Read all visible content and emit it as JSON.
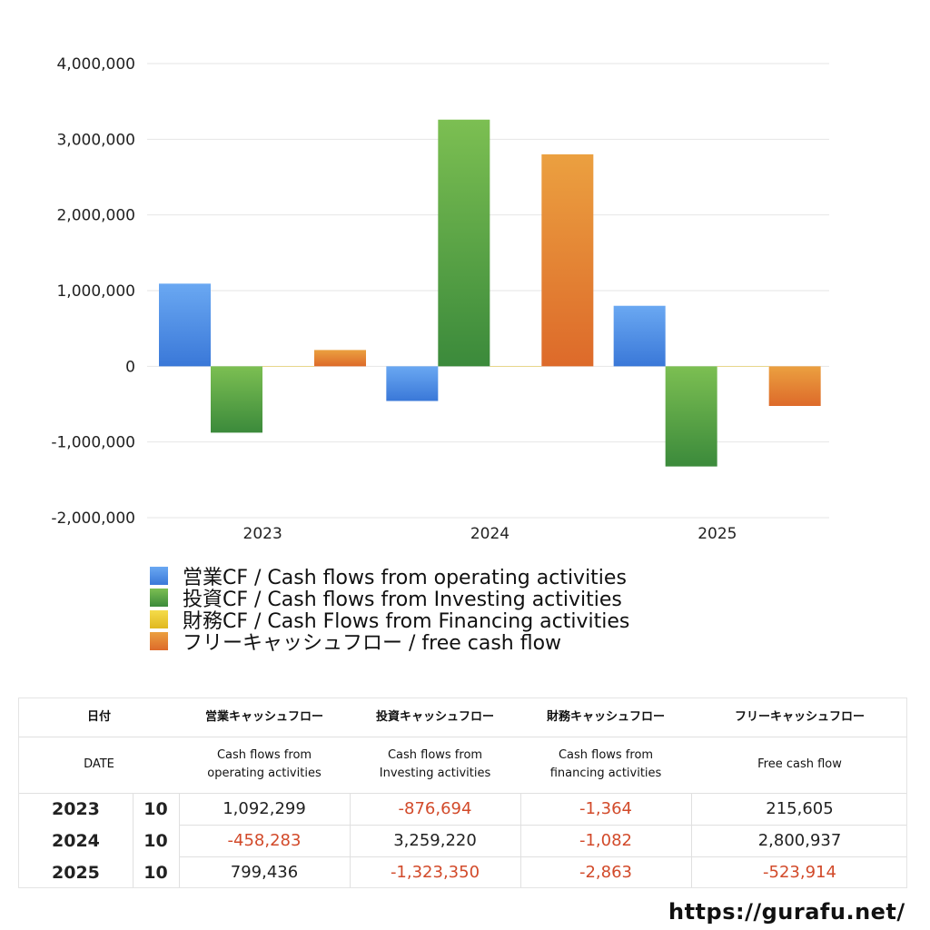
{
  "chart_data": {
    "type": "bar",
    "categories": [
      "2023",
      "2024",
      "2025"
    ],
    "ylim": [
      -2000000,
      4000000
    ],
    "yticks": [
      4000000,
      3000000,
      2000000,
      1000000,
      0,
      -1000000,
      -2000000
    ],
    "ytick_labels": [
      "4,000,000",
      "3,000,000",
      "2,000,000",
      "1,000,000",
      "0",
      "-1,000,000",
      "-2,000,000"
    ],
    "grid": true,
    "series": [
      {
        "name": "営業CF / Cash flows from operating activities",
        "values": [
          1092299,
          -458283,
          799436
        ],
        "color": "#3a78d8",
        "color_light": "#6aa8f2"
      },
      {
        "name": "投資CF / Cash flows from Investing activities",
        "values": [
          -876694,
          3259220,
          -1323350
        ],
        "color": "#3b8a3b",
        "color_light": "#7cbf52"
      },
      {
        "name": "財務CF / Cash Flows from Financing activities",
        "values": [
          -1364,
          -1082,
          -2863
        ],
        "color": "#e0b820",
        "color_light": "#f5dc4a"
      },
      {
        "name": "フリーキャッシュフロー / free cash flow",
        "values": [
          215605,
          2800937,
          -523914
        ],
        "color": "#dd6a2a",
        "color_light": "#eba040"
      }
    ]
  },
  "table": {
    "header_jp": [
      "日付",
      "営業キャッシュフロー",
      "投資キャッシュフロー",
      "財務キャッシュフロー",
      "フリーキャッシュフロー"
    ],
    "header_en": [
      "DATE",
      "Cash flows from operating activities",
      "Cash flows from Investing activities",
      "Cash flows from financing activities",
      "Free cash flow"
    ],
    "rows": [
      {
        "year": "2023",
        "month": "10",
        "values": [
          "1,092,299",
          "-876,694",
          "-1,364",
          "215,605"
        ]
      },
      {
        "year": "2024",
        "month": "10",
        "values": [
          "-458,283",
          "3,259,220",
          "-1,082",
          "2,800,937"
        ]
      },
      {
        "year": "2025",
        "month": "10",
        "values": [
          "799,436",
          "-1,323,350",
          "-2,863",
          "-523,914"
        ]
      }
    ]
  },
  "watermark": "https://gurafu.net/"
}
